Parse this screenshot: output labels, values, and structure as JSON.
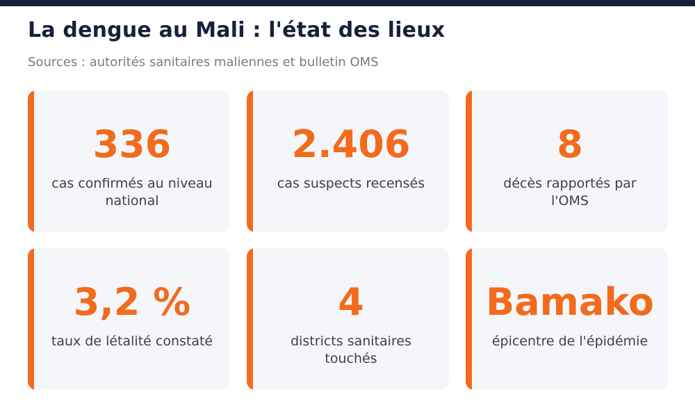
{
  "header": {
    "title": "La dengue au Mali : l'état des lieux",
    "subtitle": "Sources : autorités sanitaires maliennes et bulletin OMS"
  },
  "colors": {
    "accent": "#f26b1d",
    "title": "#16213a",
    "card_background": "#f5f6fa"
  },
  "stats": [
    {
      "value": "336",
      "label": "cas confirmés au niveau national"
    },
    {
      "value": "2.406",
      "label": "cas suspects recensés"
    },
    {
      "value": "8",
      "label": "décès rapportés par l'OMS"
    },
    {
      "value": "3,2 %",
      "label": "taux de létalité constaté"
    },
    {
      "value": "4",
      "label": "districts sanitaires touchés"
    },
    {
      "value": "Bamako",
      "label": "épicentre de l'épidémie"
    }
  ]
}
